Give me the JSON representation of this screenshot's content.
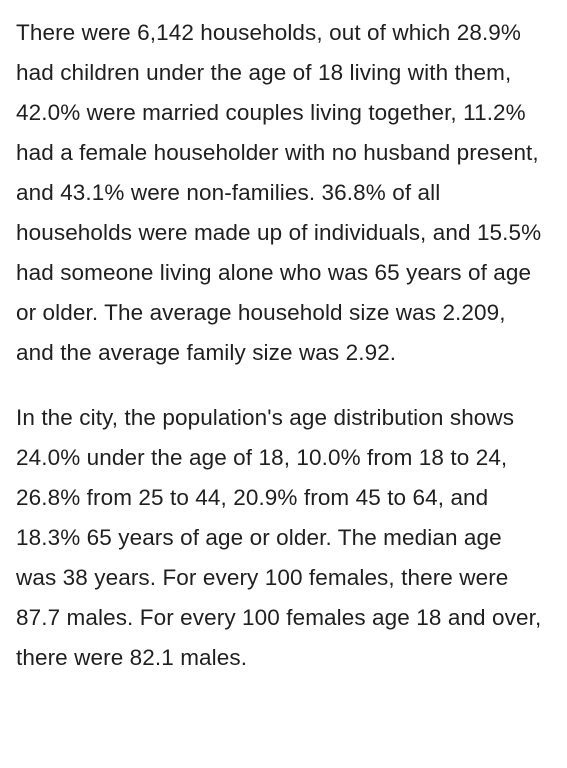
{
  "article": {
    "paragraphs": [
      "There were 6,142 households, out of which 28.9% had children under the age of 18 living with them, 42.0% were married couples living together, 11.2% had a female householder with no husband present, and 43.1% were non-families. 36.8% of all households were made up of individuals, and 15.5% had someone living alone who was 65 years of age or older. The average household size was 2.209, and the average family size was 2.92.",
      "In the city, the population's age distribution shows 24.0% under the age of 18, 10.0% from 18 to 24, 26.8% from 25 to 44, 20.9% from 45 to 64, and 18.3% 65 years of age or older. The median age was 38 years. For every 100 females, there were 87.7 males. For every 100 females age 18 and over, there were 82.1 males."
    ]
  }
}
